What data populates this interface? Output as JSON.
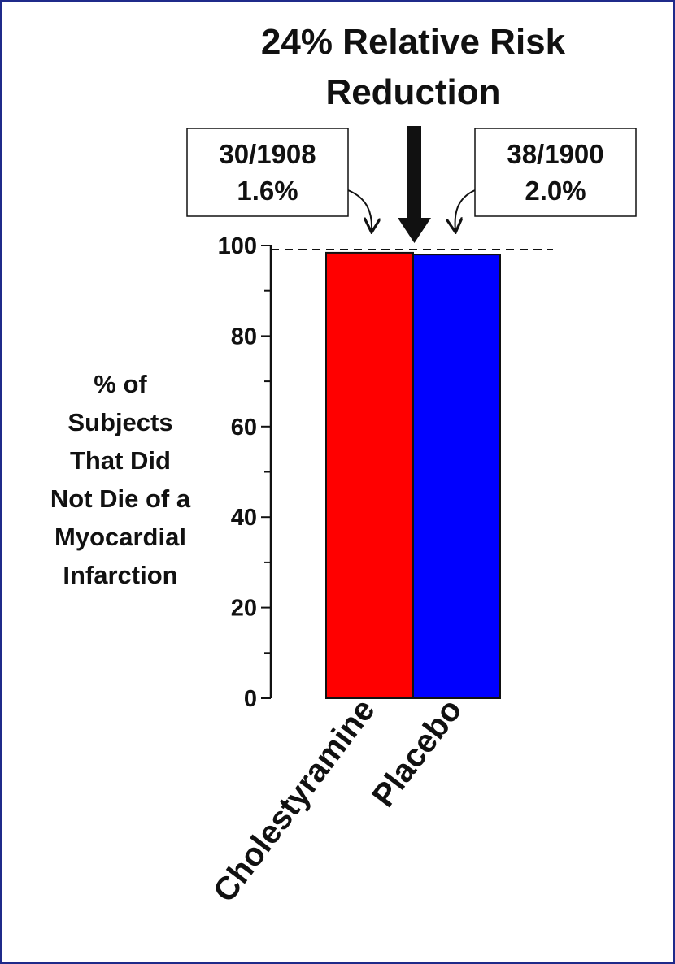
{
  "chart_data": {
    "type": "bar",
    "title_lines": [
      "24% Relative Risk",
      "Reduction"
    ],
    "ylabel_lines": [
      "% of",
      "Subjects",
      "That Did",
      "Not Die of a",
      "Myocardial",
      "Infarction"
    ],
    "categories": [
      "Cholestyramine",
      "Placebo"
    ],
    "values": [
      98.4,
      98.0
    ],
    "colors": [
      "#ff0000",
      "#0000ff"
    ],
    "ylim": [
      0,
      100
    ],
    "yticks": [
      "0",
      "20",
      "40",
      "60",
      "80",
      "100"
    ],
    "grid": false,
    "reference_line": {
      "value": 100,
      "style": "dashed"
    },
    "annotations": [
      {
        "lines": [
          "30/1908",
          "1.6%"
        ],
        "target": "Cholestyramine"
      },
      {
        "lines": [
          "38/1900",
          "2.0%"
        ],
        "target": "Placebo"
      }
    ]
  }
}
